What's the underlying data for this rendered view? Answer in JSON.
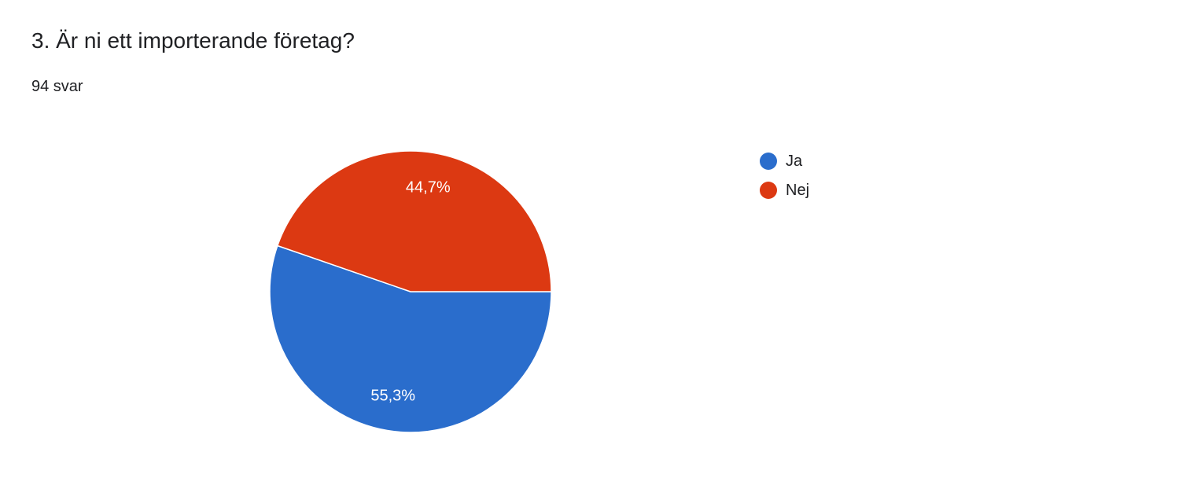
{
  "question": {
    "title": "3. Är ni ett importerande företag?",
    "response_count": "94 svar"
  },
  "chart_data": {
    "type": "pie",
    "title": "",
    "categories": [
      "Ja",
      "Nej"
    ],
    "values": [
      55.3,
      44.7
    ],
    "labels": [
      "55,3%",
      "44,7%"
    ],
    "colors": [
      "#2a6dcc",
      "#dc3912"
    ],
    "legend_placement": "right"
  }
}
